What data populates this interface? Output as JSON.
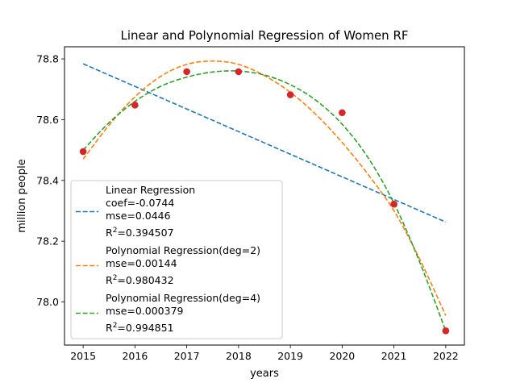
{
  "chart_data": {
    "type": "scatter",
    "title": "Linear and Polynomial Regression of Women RF",
    "xlabel": "years",
    "ylabel": "million people",
    "xlim": [
      2014.64,
      2022.36
    ],
    "ylim": [
      77.858,
      78.84
    ],
    "xticks": [
      2015,
      2016,
      2017,
      2018,
      2019,
      2020,
      2021,
      2022
    ],
    "yticks": [
      78.0,
      78.2,
      78.4,
      78.6,
      78.8
    ],
    "ytick_labels": [
      "78.0",
      "78.2",
      "78.4",
      "78.6",
      "78.8"
    ],
    "grid": false,
    "legend_position": "lower-left",
    "points": {
      "color": "#d62728",
      "x": [
        2015,
        2016,
        2017,
        2018,
        2019,
        2020,
        2021,
        2022
      ],
      "y": [
        78.495,
        78.648,
        78.758,
        78.758,
        78.682,
        78.623,
        78.322,
        77.905
      ]
    },
    "series": [
      {
        "kind": "linear",
        "color": "#1f77b4",
        "legend_lines": [
          "Linear Regression",
          "coef=-0.0744",
          "mse=0.0446",
          "R2=0.394507"
        ],
        "x": [
          2015,
          2022
        ],
        "y": [
          78.784,
          78.263
        ]
      },
      {
        "kind": "poly2",
        "color": "#ff7f0e",
        "legend_lines": [
          "Polynomial Regression(deg=2)",
          "mse=0.00144",
          "R2=0.980432"
        ],
        "x": [
          2015,
          2015.5,
          2016,
          2016.5,
          2017,
          2017.5,
          2018,
          2018.5,
          2019,
          2019.5,
          2020,
          2020.5,
          2021,
          2021.5,
          2022
        ],
        "y": [
          78.47,
          78.582,
          78.675,
          78.743,
          78.782,
          78.793,
          78.782,
          78.745,
          78.69,
          78.616,
          78.525,
          78.42,
          78.3,
          78.14,
          77.955
        ]
      },
      {
        "kind": "poly4",
        "color": "#2ca02c",
        "legend_lines": [
          "Polynomial Regression(deg=4)",
          "mse=0.000379",
          "R2=0.994851"
        ],
        "x": [
          2015,
          2015.5,
          2016,
          2016.5,
          2017,
          2017.5,
          2018,
          2018.5,
          2019,
          2019.5,
          2020,
          2020.5,
          2021,
          2021.5,
          2022
        ],
        "y": [
          78.5,
          78.59,
          78.66,
          78.71,
          78.74,
          78.757,
          78.76,
          78.747,
          78.715,
          78.663,
          78.585,
          78.475,
          78.325,
          78.13,
          77.905
        ]
      }
    ]
  }
}
